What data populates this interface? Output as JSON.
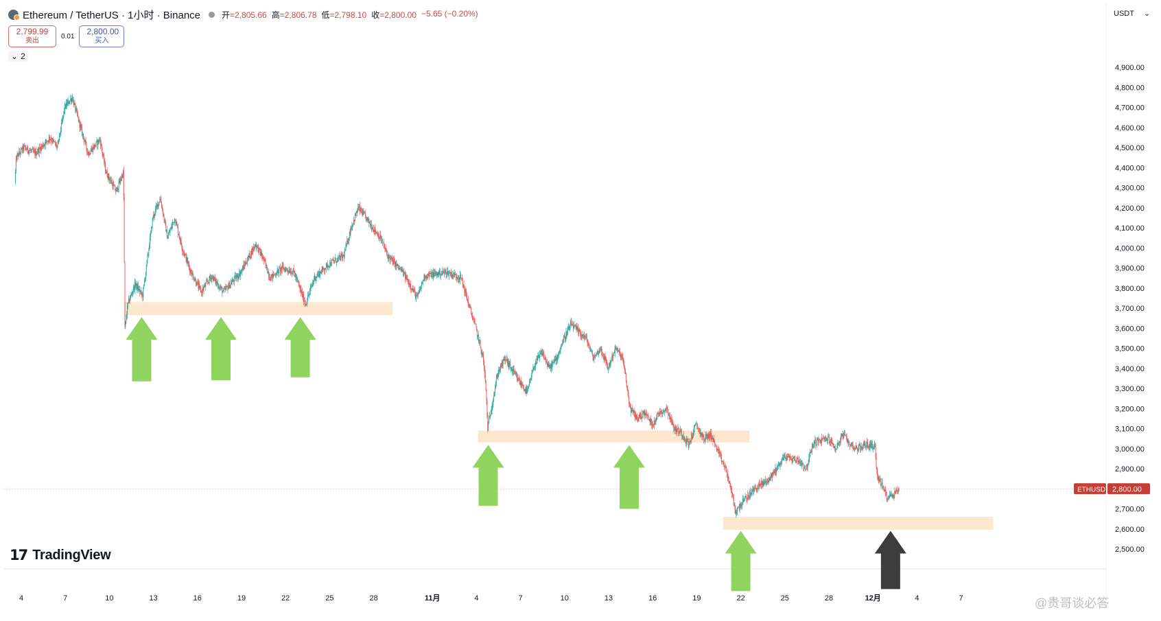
{
  "header": {
    "symbol": "Ethereum / TetherUS · 1小时 · Binance",
    "ohlc": [
      {
        "key": "开",
        "val": "=2,805.66"
      },
      {
        "key": "高",
        "val": "=2,806.78"
      },
      {
        "key": "低",
        "val": "=2,798.10"
      },
      {
        "key": "收",
        "val": "=2,800.00"
      }
    ],
    "change": "−5.65 (−0.20%)"
  },
  "trade": {
    "sell_price": "2,799.99",
    "sell_label": "卖出",
    "spread": "0.01",
    "buy_price": "2,800.00",
    "buy_label": "买入"
  },
  "indicators_toggle": "2",
  "currency": "USDT",
  "last_price_badge": {
    "symbol": "ETHUSDT",
    "price": "2,800.00"
  },
  "branding": {
    "name": "TradingView",
    "mark": "17"
  },
  "watermark": "@贵哥谈必答",
  "colors": {
    "up": "#26a69a",
    "down": "#ef5350",
    "zone": "#fbe8cf",
    "arrow_green": "#8fd45e",
    "arrow_dark": "#3c3c3c",
    "badge_bg": "#c63d36"
  },
  "chart_data": {
    "type": "candlestick",
    "title": "Ethereum / TetherUS · 1小时 · Binance",
    "ylabel": "USDT",
    "ylim": [
      2400,
      4950
    ],
    "y_ticks": [
      2500,
      2600,
      2700,
      2800,
      2900,
      3000,
      3100,
      3200,
      3300,
      3400,
      3500,
      3600,
      3700,
      3800,
      3900,
      4000,
      4100,
      4200,
      4300,
      4400,
      4500,
      4600,
      4700,
      4800,
      4900
    ],
    "y_tick_labels": [
      "2,500.00",
      "2,600.00",
      "2,700.00",
      "2,800.00",
      "2,900.00",
      "3,000.00",
      "3,100.00",
      "3,200.00",
      "3,300.00",
      "3,400.00",
      "3,500.00",
      "3,600.00",
      "3,700.00",
      "3,800.00",
      "3,900.00",
      "4,000.00",
      "4,100.00",
      "4,200.00",
      "4,300.00",
      "4,400.00",
      "4,500.00",
      "4,600.00",
      "4,700.00",
      "4,800.00",
      "4,900.00"
    ],
    "x_ticks": [
      {
        "day": 4,
        "label": "4"
      },
      {
        "day": 7,
        "label": "7"
      },
      {
        "day": 10,
        "label": "10"
      },
      {
        "day": 13,
        "label": "13"
      },
      {
        "day": 16,
        "label": "16"
      },
      {
        "day": 19,
        "label": "19"
      },
      {
        "day": 22,
        "label": "22"
      },
      {
        "day": 25,
        "label": "25"
      },
      {
        "day": 28,
        "label": "28"
      },
      {
        "day": 32,
        "label": "11月"
      },
      {
        "day": 35,
        "label": "4"
      },
      {
        "day": 38,
        "label": "7"
      },
      {
        "day": 41,
        "label": "10"
      },
      {
        "day": 44,
        "label": "13"
      },
      {
        "day": 47,
        "label": "16"
      },
      {
        "day": 50,
        "label": "19"
      },
      {
        "day": 53,
        "label": "22"
      },
      {
        "day": 56,
        "label": "25"
      },
      {
        "day": 59,
        "label": "28"
      },
      {
        "day": 62,
        "label": "12月"
      },
      {
        "day": 65,
        "label": "4"
      },
      {
        "day": 68,
        "label": "7"
      }
    ],
    "price_path": [
      [
        3.6,
        4330
      ],
      [
        3.7,
        4450
      ],
      [
        4.2,
        4500
      ],
      [
        5,
        4470
      ],
      [
        6,
        4550
      ],
      [
        6.5,
        4500
      ],
      [
        7,
        4700
      ],
      [
        7.5,
        4750
      ],
      [
        8,
        4620
      ],
      [
        8.6,
        4470
      ],
      [
        9.4,
        4540
      ],
      [
        9.8,
        4380
      ],
      [
        10.5,
        4280
      ],
      [
        11,
        4380
      ],
      [
        11.1,
        3600
      ],
      [
        11.3,
        3720
      ],
      [
        11.8,
        3820
      ],
      [
        12.3,
        3760
      ],
      [
        13,
        4150
      ],
      [
        13.5,
        4250
      ],
      [
        14,
        4050
      ],
      [
        14.5,
        4150
      ],
      [
        15,
        4000
      ],
      [
        15.6,
        3880
      ],
      [
        16.3,
        3780
      ],
      [
        17,
        3860
      ],
      [
        17.8,
        3780
      ],
      [
        19,
        3880
      ],
      [
        20,
        4020
      ],
      [
        20.5,
        3950
      ],
      [
        21,
        3850
      ],
      [
        21.8,
        3900
      ],
      [
        22.6,
        3880
      ],
      [
        23.4,
        3720
      ],
      [
        24,
        3850
      ],
      [
        25,
        3920
      ],
      [
        26,
        3960
      ],
      [
        26.5,
        4100
      ],
      [
        27,
        4200
      ],
      [
        27.5,
        4150
      ],
      [
        28,
        4100
      ],
      [
        28.5,
        4050
      ],
      [
        29,
        3960
      ],
      [
        30,
        3880
      ],
      [
        30.5,
        3820
      ],
      [
        31,
        3750
      ],
      [
        31.5,
        3860
      ],
      [
        33,
        3880
      ],
      [
        34,
        3850
      ],
      [
        34.5,
        3720
      ],
      [
        35,
        3600
      ],
      [
        35.5,
        3450
      ],
      [
        35.7,
        3280
      ],
      [
        35.8,
        3100
      ],
      [
        36.5,
        3380
      ],
      [
        37,
        3450
      ],
      [
        37.8,
        3350
      ],
      [
        38.5,
        3280
      ],
      [
        39,
        3420
      ],
      [
        39.5,
        3480
      ],
      [
        40,
        3400
      ],
      [
        40.5,
        3450
      ],
      [
        41,
        3550
      ],
      [
        41.5,
        3620
      ],
      [
        42,
        3580
      ],
      [
        42.5,
        3550
      ],
      [
        43,
        3450
      ],
      [
        43.5,
        3500
      ],
      [
        44,
        3400
      ],
      [
        44.5,
        3500
      ],
      [
        45,
        3450
      ],
      [
        45.5,
        3200
      ],
      [
        46,
        3150
      ],
      [
        46.5,
        3180
      ],
      [
        47,
        3120
      ],
      [
        47.5,
        3180
      ],
      [
        48,
        3200
      ],
      [
        48.5,
        3100
      ],
      [
        49,
        3080
      ],
      [
        49.5,
        3020
      ],
      [
        50,
        3120
      ],
      [
        50.5,
        3050
      ],
      [
        51,
        3070
      ],
      [
        51.5,
        2980
      ],
      [
        52,
        2900
      ],
      [
        52.3,
        2820
      ],
      [
        52.7,
        2680
      ],
      [
        53,
        2720
      ],
      [
        53.5,
        2760
      ],
      [
        54,
        2800
      ],
      [
        55,
        2850
      ],
      [
        56,
        2960
      ],
      [
        57,
        2940
      ],
      [
        57.5,
        2900
      ],
      [
        58,
        3030
      ],
      [
        59,
        3050
      ],
      [
        59.5,
        3000
      ],
      [
        60,
        3070
      ],
      [
        60.5,
        3020
      ],
      [
        61,
        3000
      ],
      [
        61.5,
        3020
      ],
      [
        62.2,
        3010
      ],
      [
        62.3,
        2870
      ],
      [
        63,
        2760
      ],
      [
        63.4,
        2770
      ],
      [
        63.8,
        2800
      ]
    ],
    "support_zones": [
      {
        "from_day": 11.0,
        "to_day": 29.3,
        "low": 3665,
        "high": 3730
      },
      {
        "from_day": 35.1,
        "to_day": 53.6,
        "low": 3030,
        "high": 3090
      },
      {
        "from_day": 51.8,
        "to_day": 70.2,
        "low": 2595,
        "high": 2660
      }
    ],
    "arrows": [
      {
        "day": 12.2,
        "tip": 3655,
        "tail": 3335,
        "color": "green"
      },
      {
        "day": 17.6,
        "tip": 3655,
        "tail": 3340,
        "color": "green"
      },
      {
        "day": 23.0,
        "tip": 3655,
        "tail": 3355,
        "color": "green"
      },
      {
        "day": 35.8,
        "tip": 3018,
        "tail": 2715,
        "color": "green"
      },
      {
        "day": 45.4,
        "tip": 3018,
        "tail": 2700,
        "color": "green"
      },
      {
        "day": 53.0,
        "tip": 2590,
        "tail": 2290,
        "color": "green"
      },
      {
        "day": 63.2,
        "tip": 2590,
        "tail": 2300,
        "color": "dark"
      }
    ],
    "last_price": 2800,
    "grid": false,
    "legend": "none"
  }
}
